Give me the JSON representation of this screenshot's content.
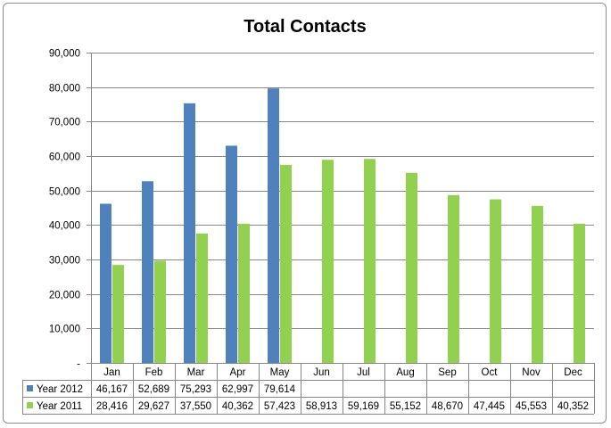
{
  "chart_data": {
    "type": "bar",
    "title": "Total Contacts",
    "categories": [
      "Jan",
      "Feb",
      "Mar",
      "Apr",
      "May",
      "Jun",
      "Jul",
      "Aug",
      "Sep",
      "Oct",
      "Nov",
      "Dec"
    ],
    "series": [
      {
        "name": "Year 2012",
        "color": "#4f81bd",
        "values": [
          46167,
          52689,
          75293,
          62997,
          79614,
          null,
          null,
          null,
          null,
          null,
          null,
          null
        ],
        "labels": [
          "46,167",
          "52,689",
          "75,293",
          "62,997",
          "79,614",
          "",
          "",
          "",
          "",
          "",
          "",
          ""
        ]
      },
      {
        "name": "Year 2011",
        "color": "#92d050",
        "values": [
          28416,
          29627,
          37550,
          40362,
          57423,
          58913,
          59169,
          55152,
          48670,
          47445,
          45553,
          40352
        ],
        "labels": [
          "28,416",
          "29,627",
          "37,550",
          "40,362",
          "57,423",
          "58,913",
          "59,169",
          "55,152",
          "48,670",
          "47,445",
          "45,553",
          "40,352"
        ]
      }
    ],
    "ylim": [
      0,
      90000
    ],
    "yticks": [
      0,
      10000,
      20000,
      30000,
      40000,
      50000,
      60000,
      70000,
      80000,
      90000
    ],
    "ytick_labels": [
      "-",
      "10,000",
      "20,000",
      "30,000",
      "40,000",
      "50,000",
      "60,000",
      "70,000",
      "80,000",
      "90,000"
    ],
    "grid": true,
    "legend": "data-table"
  }
}
